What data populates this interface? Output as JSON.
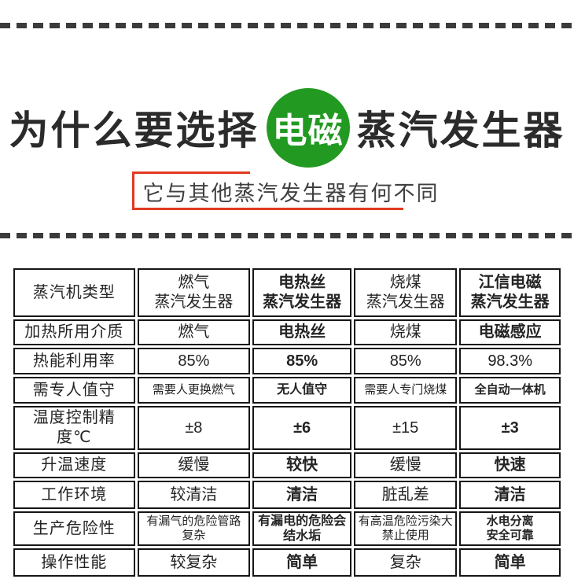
{
  "header": {
    "title_prefix": "为什么要选择",
    "title_highlight": "电磁",
    "title_suffix": "蒸汽发生器",
    "subtitle": "它与其他蒸汽发生器有何不同"
  },
  "colors": {
    "brand_green": "#229a22",
    "label_column_green": "#8dc87f",
    "highlight_column_green": "#d8eeca",
    "advantage_text_green": "#2f9e2f",
    "accent_red": "#e03a21",
    "dash_gray": "#3b3b3b",
    "title_black": "#2b2b2b"
  },
  "chart_data": {
    "type": "table",
    "title": "为什么要选择电磁蒸汽发生器 — 它与其他蒸汽发生器有何不同",
    "legend_position": "none",
    "grid": true,
    "columns": [
      "蒸汽机类型",
      "燃气蒸汽发生器",
      "电热丝蒸汽发生器",
      "烧煤蒸汽发生器",
      "江信电磁蒸汽发生器"
    ],
    "highlighted_column": "电热丝蒸汽发生器",
    "advantage_column": "江信电磁蒸汽发生器",
    "rows": [
      {
        "label": "蒸汽机类型",
        "values": [
          "燃气\n蒸汽发生器",
          "电热丝\n蒸汽发生器",
          "烧煤\n蒸汽发生器",
          "江信电磁\n蒸汽发生器"
        ]
      },
      {
        "label": "加热所用介质",
        "values": [
          "燃气",
          "电热丝",
          "烧煤",
          "电磁感应"
        ]
      },
      {
        "label": "热能利用率",
        "values": [
          "85%",
          "85%",
          "85%",
          "98.3%"
        ]
      },
      {
        "label": "需专人值守",
        "values": [
          "需要人更换燃气",
          "无人值守",
          "需要人专门烧煤",
          "全自动一体机"
        ]
      },
      {
        "label": "温度控制精度℃",
        "values": [
          "±8",
          "±6",
          "±15",
          "±3"
        ]
      },
      {
        "label": "升温速度",
        "values": [
          "缓慢",
          "较快",
          "缓慢",
          "快速"
        ]
      },
      {
        "label": "工作环境",
        "values": [
          "较清洁",
          "清洁",
          "脏乱差",
          "清洁"
        ]
      },
      {
        "label": "生产危险性",
        "values": [
          "有漏气的危险管路\n复杂",
          "有漏电的危险会\n结水垢",
          "有高温危险污染大\n禁止使用",
          "水电分离\n安全可靠"
        ]
      },
      {
        "label": "操作性能",
        "values": [
          "较复杂",
          "简单",
          "复杂",
          "简单"
        ]
      }
    ]
  }
}
